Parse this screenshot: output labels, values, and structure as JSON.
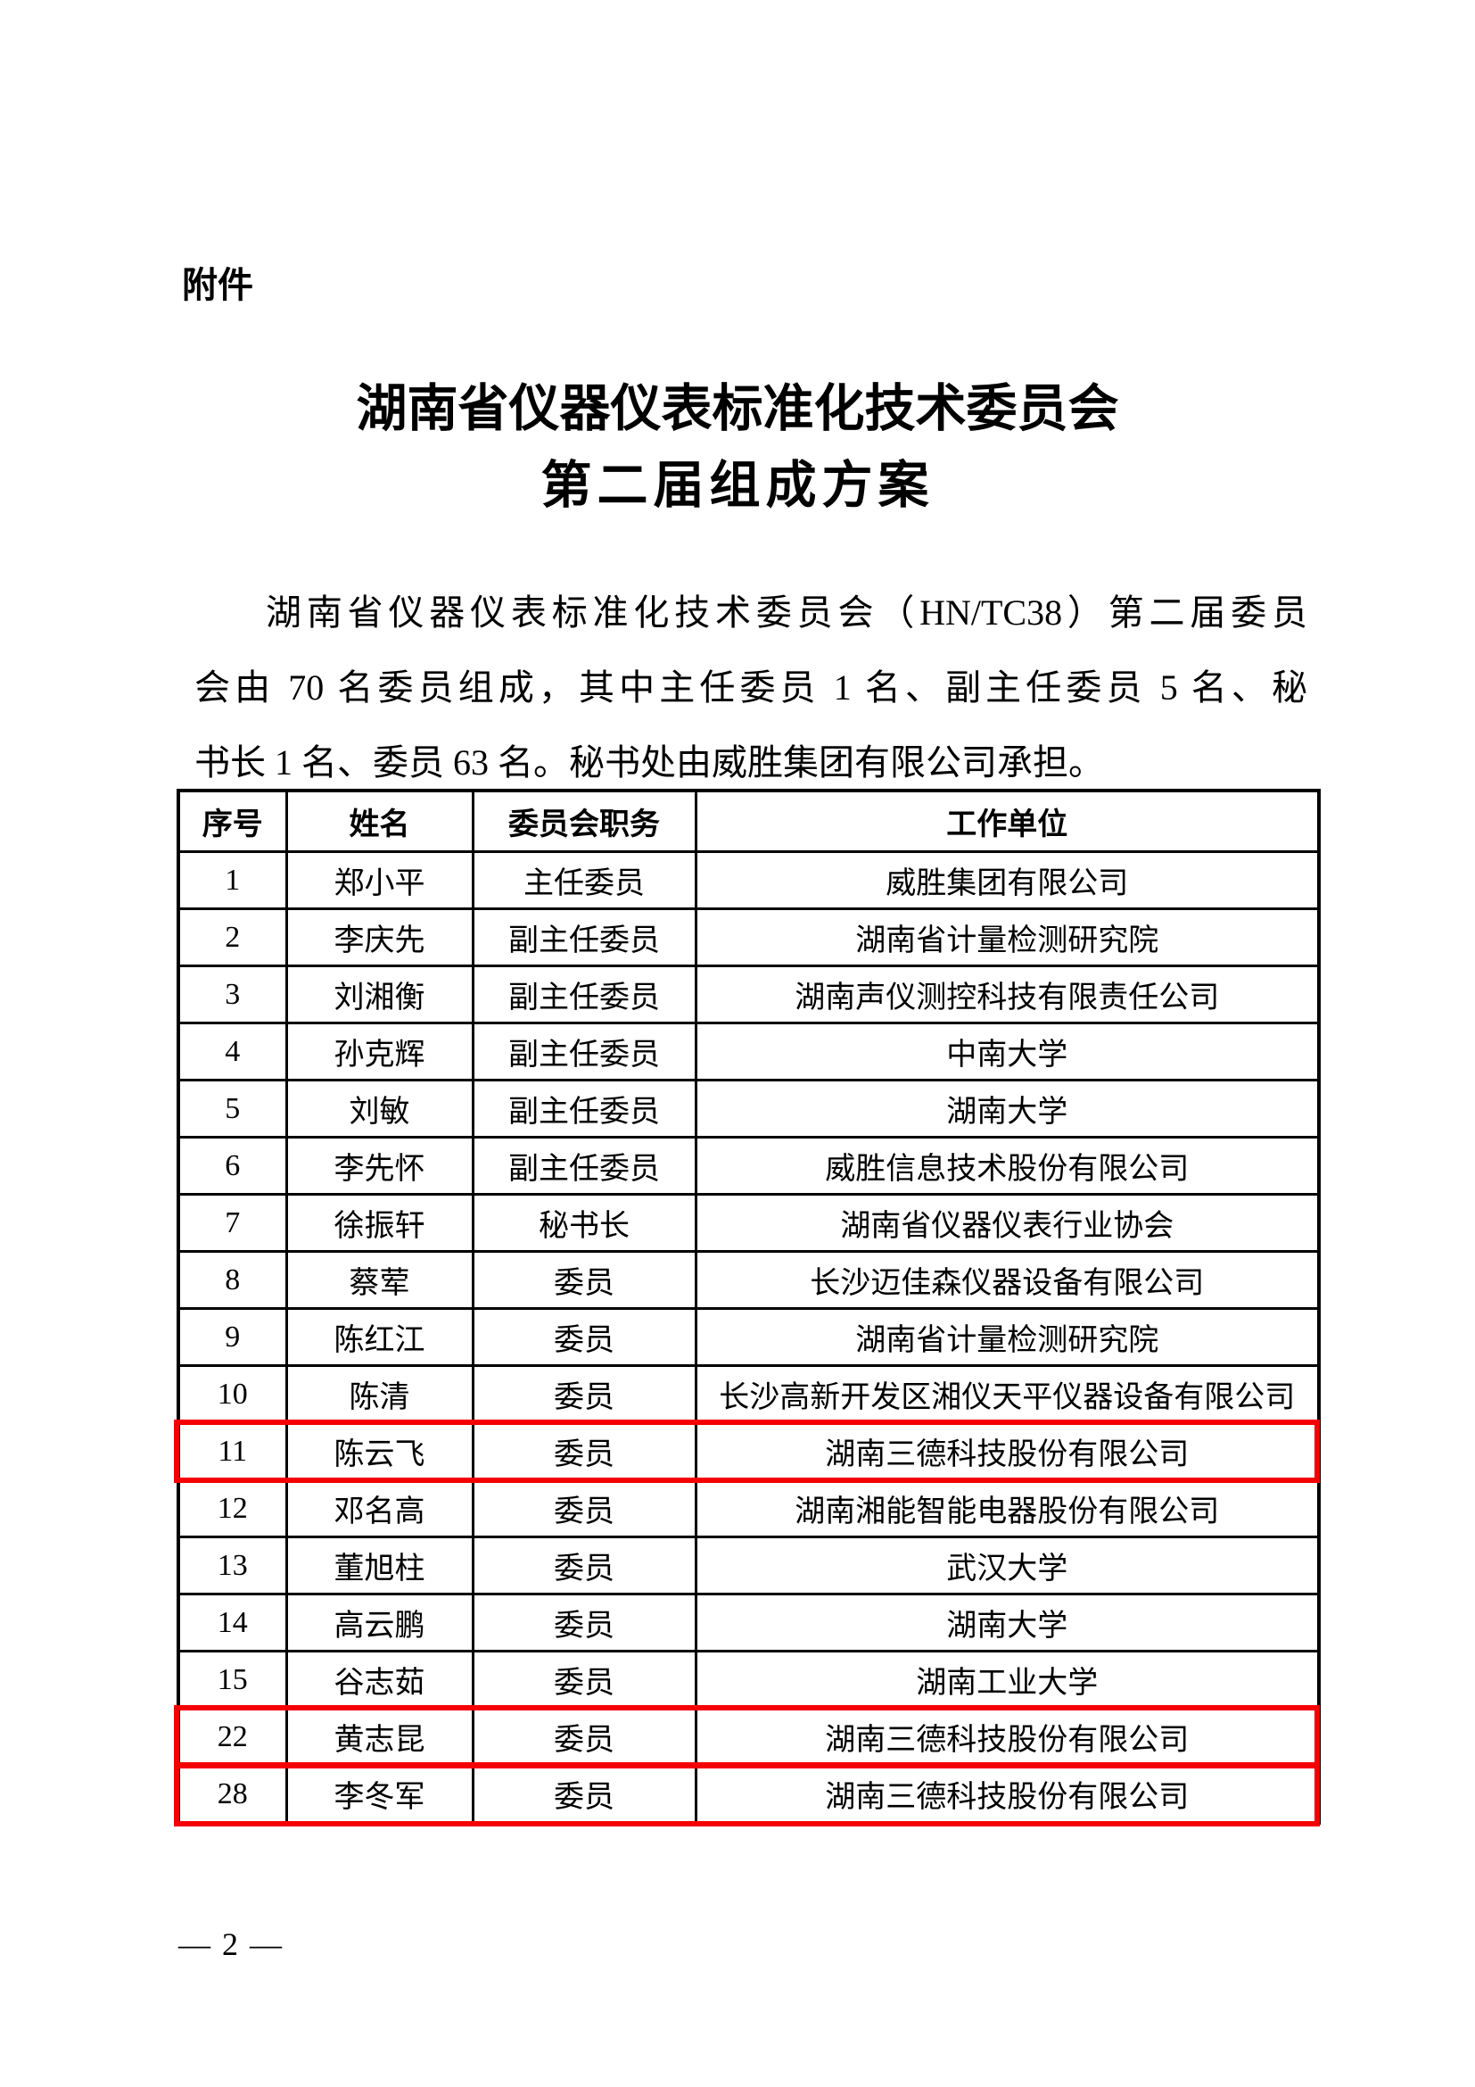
{
  "page": {
    "attachment_label": "附件",
    "title_line1": "湖南省仪器仪表标准化技术委员会",
    "title_line2": "第二届组成方案",
    "paragraph_lines": [
      "湖南省仪器仪表标准化技术委员会（HN/TC38）第二届委员",
      "会由 70 名委员组成，其中主任委员 1 名、副主任委员 5 名、秘",
      "书长 1 名、委员 63 名。秘书处由威胜集团有限公司承担。"
    ],
    "page_number": "— 2 —"
  },
  "table": {
    "headers": [
      "序号",
      "姓名",
      "委员会职务",
      "工作单位"
    ],
    "rows": [
      {
        "no": "1",
        "name": "郑小平",
        "position": "主任委员",
        "organization": "威胜集团有限公司",
        "highlight": false
      },
      {
        "no": "2",
        "name": "李庆先",
        "position": "副主任委员",
        "organization": "湖南省计量检测研究院",
        "highlight": false
      },
      {
        "no": "3",
        "name": "刘湘衡",
        "position": "副主任委员",
        "organization": "湖南声仪测控科技有限责任公司",
        "highlight": false
      },
      {
        "no": "4",
        "name": "孙克辉",
        "position": "副主任委员",
        "organization": "中南大学",
        "highlight": false
      },
      {
        "no": "5",
        "name": "刘敏",
        "position": "副主任委员",
        "organization": "湖南大学",
        "highlight": false
      },
      {
        "no": "6",
        "name": "李先怀",
        "position": "副主任委员",
        "organization": "威胜信息技术股份有限公司",
        "highlight": false
      },
      {
        "no": "7",
        "name": "徐振轩",
        "position": "秘书长",
        "organization": "湖南省仪器仪表行业协会",
        "highlight": false
      },
      {
        "no": "8",
        "name": "蔡荤",
        "position": "委员",
        "organization": "长沙迈佳森仪器设备有限公司",
        "highlight": false
      },
      {
        "no": "9",
        "name": "陈红江",
        "position": "委员",
        "organization": "湖南省计量检测研究院",
        "highlight": false
      },
      {
        "no": "10",
        "name": "陈清",
        "position": "委员",
        "organization": "长沙高新开发区湘仪天平仪器设备有限公司",
        "highlight": false
      },
      {
        "no": "11",
        "name": "陈云飞",
        "position": "委员",
        "organization": "湖南三德科技股份有限公司",
        "highlight": true
      },
      {
        "no": "12",
        "name": "邓名高",
        "position": "委员",
        "organization": "湖南湘能智能电器股份有限公司",
        "highlight": false
      },
      {
        "no": "13",
        "name": "董旭柱",
        "position": "委员",
        "organization": "武汉大学",
        "highlight": false
      },
      {
        "no": "14",
        "name": "高云鹏",
        "position": "委员",
        "organization": "湖南大学",
        "highlight": false
      },
      {
        "no": "15",
        "name": "谷志茹",
        "position": "委员",
        "organization": "湖南工业大学",
        "highlight": false
      },
      {
        "no": "22",
        "name": "黄志昆",
        "position": "委员",
        "organization": "湖南三德科技股份有限公司",
        "highlight": true
      },
      {
        "no": "28",
        "name": "李冬军",
        "position": "委员",
        "organization": "湖南三德科技股份有限公司",
        "highlight": true
      }
    ]
  },
  "colors": {
    "highlight_border": "#f40000",
    "table_border": "#000000",
    "text": "#000000",
    "page_background": "#ffffff"
  }
}
